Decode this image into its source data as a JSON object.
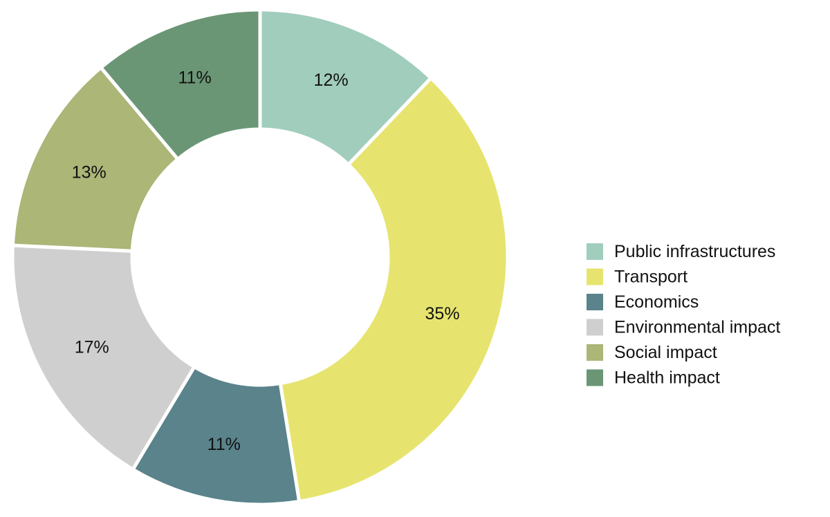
{
  "chart_data": {
    "type": "pie",
    "variant": "donut",
    "title": "",
    "categories": [
      "Public infrastructures",
      "Transport",
      "Economics",
      "Environmental impact",
      "Social impact",
      "Health impact"
    ],
    "values": [
      12,
      35,
      11,
      17,
      13,
      11
    ],
    "labels": [
      "12%",
      "35%",
      "11%",
      "17%",
      "13%",
      "11%"
    ],
    "colors": [
      "#a1cdbc",
      "#e6e46f",
      "#5a838b",
      "#cfcfcf",
      "#abb677",
      "#6b9676"
    ],
    "start_angle_deg": 0,
    "direction": "clockwise",
    "legend_position": "right"
  }
}
